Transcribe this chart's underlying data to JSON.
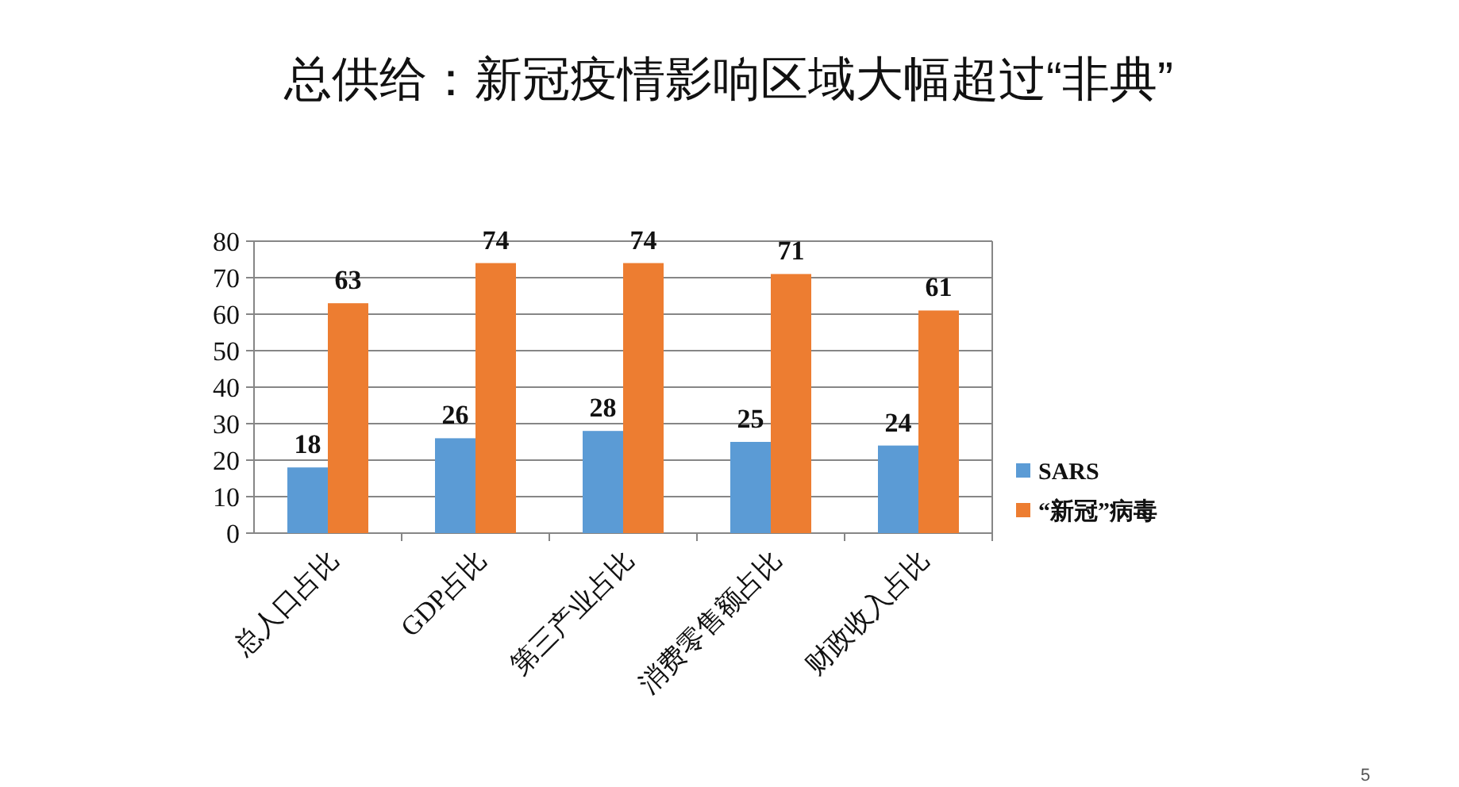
{
  "chart_data": {
    "type": "bar",
    "title": "总供给：新冠疫情影响区域大幅超过“非典”",
    "categories": [
      "总人口占比",
      "GDP占比",
      "第三产业占比",
      "消费零售额占比",
      "财政收入占比"
    ],
    "series": [
      {
        "name": "SARS",
        "color": "#5b9bd5",
        "values": [
          18,
          26,
          28,
          25,
          24
        ]
      },
      {
        "name": "“新冠”病毒",
        "color": "#ed7d31",
        "values": [
          63,
          74,
          74,
          71,
          61
        ]
      }
    ],
    "ylim": [
      0,
      80
    ],
    "yticks": [
      0,
      10,
      20,
      30,
      40,
      50,
      60,
      70,
      80
    ],
    "grid": "y",
    "legend": "right",
    "data_labels": true,
    "annotations": [
      "5"
    ]
  }
}
